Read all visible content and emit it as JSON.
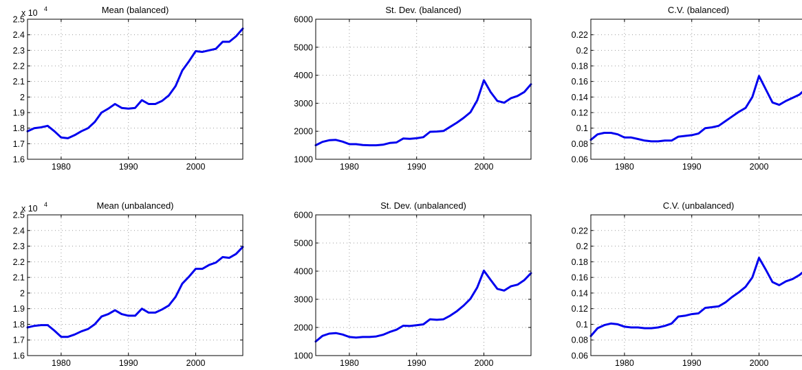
{
  "chart_data": [
    {
      "type": "line",
      "title": "Mean (balanced)",
      "multiplier_base": "x 10",
      "multiplier_exp": "4",
      "xlim": [
        1975,
        2007
      ],
      "ylim": [
        1.6,
        2.5
      ],
      "xticks": [
        1980,
        1990,
        2000
      ],
      "xtick_labels": [
        "1980",
        "1990",
        "2000"
      ],
      "yticks": [
        1.6,
        1.7,
        1.8,
        1.9,
        2.0,
        2.1,
        2.2,
        2.3,
        2.4,
        2.5
      ],
      "ytick_labels": [
        "1.6",
        "1.7",
        "1.8",
        "1.9",
        "2",
        "2.1",
        "2.2",
        "2.3",
        "2.4",
        "2.5"
      ],
      "grid": true,
      "color": "#0000ee",
      "x": [
        1975,
        1976,
        1977,
        1978,
        1979,
        1980,
        1981,
        1982,
        1983,
        1984,
        1985,
        1986,
        1987,
        1988,
        1989,
        1990,
        1991,
        1992,
        1993,
        1994,
        1995,
        1996,
        1997,
        1998,
        1999,
        2000,
        2001,
        2002,
        2003,
        2004,
        2005,
        2006,
        2007
      ],
      "y": [
        1.78,
        1.8,
        1.805,
        1.815,
        1.78,
        1.74,
        1.735,
        1.755,
        1.78,
        1.8,
        1.84,
        1.9,
        1.925,
        1.955,
        1.93,
        1.925,
        1.93,
        1.98,
        1.955,
        1.955,
        1.975,
        2.01,
        2.07,
        2.17,
        2.23,
        2.295,
        2.29,
        2.3,
        2.31,
        2.355,
        2.355,
        2.39,
        2.44
      ]
    },
    {
      "type": "line",
      "title": "St. Dev. (balanced)",
      "xlim": [
        1975,
        2007
      ],
      "ylim": [
        1000,
        6000
      ],
      "xticks": [
        1980,
        1990,
        2000
      ],
      "xtick_labels": [
        "1980",
        "1990",
        "2000"
      ],
      "yticks": [
        1000,
        2000,
        3000,
        4000,
        5000,
        6000
      ],
      "ytick_labels": [
        "1000",
        "2000",
        "3000",
        "4000",
        "5000",
        "6000"
      ],
      "grid": true,
      "color": "#0000ee",
      "x": [
        1975,
        1976,
        1977,
        1978,
        1979,
        1980,
        1981,
        1982,
        1983,
        1984,
        1985,
        1986,
        1987,
        1988,
        1989,
        1990,
        1991,
        1992,
        1993,
        1994,
        1995,
        1996,
        1997,
        1998,
        1999,
        2000,
        2001,
        2002,
        2003,
        2004,
        2005,
        2006,
        2007
      ],
      "y": [
        1500,
        1620,
        1680,
        1690,
        1630,
        1540,
        1540,
        1510,
        1500,
        1500,
        1520,
        1580,
        1600,
        1740,
        1730,
        1750,
        1790,
        1980,
        1990,
        2010,
        2160,
        2310,
        2480,
        2680,
        3100,
        3820,
        3400,
        3080,
        3020,
        3180,
        3260,
        3400,
        3680
      ]
    },
    {
      "type": "line",
      "title": "C.V. (balanced)",
      "xlim": [
        1975,
        2007
      ],
      "ylim": [
        0.06,
        0.24
      ],
      "xticks": [
        1980,
        1990,
        2000
      ],
      "xtick_labels": [
        "1980",
        "1990",
        "2000"
      ],
      "yticks": [
        0.06,
        0.08,
        0.1,
        0.12,
        0.14,
        0.16,
        0.18,
        0.2,
        0.22
      ],
      "ytick_labels": [
        "0.06",
        "0.08",
        "0.1",
        "0.12",
        "0.14",
        "0.16",
        "0.18",
        "0.2",
        "0.22"
      ],
      "grid": true,
      "color": "#0000ee",
      "x": [
        1975,
        1976,
        1977,
        1978,
        1979,
        1980,
        1981,
        1982,
        1983,
        1984,
        1985,
        1986,
        1987,
        1988,
        1989,
        1990,
        1991,
        1992,
        1993,
        1994,
        1995,
        1996,
        1997,
        1998,
        1999,
        2000,
        2001,
        2002,
        2003,
        2004,
        2005,
        2006,
        2007
      ],
      "y": [
        0.085,
        0.092,
        0.094,
        0.094,
        0.092,
        0.088,
        0.088,
        0.086,
        0.084,
        0.083,
        0.083,
        0.084,
        0.084,
        0.089,
        0.09,
        0.091,
        0.093,
        0.1,
        0.101,
        0.103,
        0.109,
        0.115,
        0.121,
        0.126,
        0.14,
        0.167,
        0.15,
        0.133,
        0.13,
        0.135,
        0.139,
        0.143,
        0.151
      ]
    },
    {
      "type": "line",
      "title": "Mean (unbalanced)",
      "multiplier_base": "x 10",
      "multiplier_exp": "4",
      "xlim": [
        1975,
        2007
      ],
      "ylim": [
        1.6,
        2.5
      ],
      "xticks": [
        1980,
        1990,
        2000
      ],
      "xtick_labels": [
        "1980",
        "1990",
        "2000"
      ],
      "yticks": [
        1.6,
        1.7,
        1.8,
        1.9,
        2.0,
        2.1,
        2.2,
        2.3,
        2.4,
        2.5
      ],
      "ytick_labels": [
        "1.6",
        "1.7",
        "1.8",
        "1.9",
        "2",
        "2.1",
        "2.2",
        "2.3",
        "2.4",
        "2.5"
      ],
      "grid": true,
      "color": "#0000ee",
      "x": [
        1975,
        1976,
        1977,
        1978,
        1979,
        1980,
        1981,
        1982,
        1983,
        1984,
        1985,
        1986,
        1987,
        1988,
        1989,
        1990,
        1991,
        1992,
        1993,
        1994,
        1995,
        1996,
        1997,
        1998,
        1999,
        2000,
        2001,
        2002,
        2003,
        2004,
        2005,
        2006,
        2007
      ],
      "y": [
        1.78,
        1.79,
        1.795,
        1.795,
        1.76,
        1.72,
        1.72,
        1.735,
        1.755,
        1.77,
        1.8,
        1.85,
        1.865,
        1.89,
        1.865,
        1.855,
        1.855,
        1.9,
        1.875,
        1.875,
        1.895,
        1.92,
        1.975,
        2.06,
        2.105,
        2.155,
        2.155,
        2.18,
        2.195,
        2.23,
        2.225,
        2.25,
        2.295
      ]
    },
    {
      "type": "line",
      "title": "St. Dev. (unbalanced)",
      "xlim": [
        1975,
        2007
      ],
      "ylim": [
        1000,
        6000
      ],
      "xticks": [
        1980,
        1990,
        2000
      ],
      "xtick_labels": [
        "1980",
        "1990",
        "2000"
      ],
      "yticks": [
        1000,
        2000,
        3000,
        4000,
        5000,
        6000
      ],
      "ytick_labels": [
        "1000",
        "2000",
        "3000",
        "4000",
        "5000",
        "6000"
      ],
      "grid": true,
      "color": "#0000ee",
      "x": [
        1975,
        1976,
        1977,
        1978,
        1979,
        1980,
        1981,
        1982,
        1983,
        1984,
        1985,
        1986,
        1987,
        1988,
        1989,
        1990,
        1991,
        1992,
        1993,
        1994,
        1995,
        1996,
        1997,
        1998,
        1999,
        2000,
        2001,
        2002,
        2003,
        2004,
        2005,
        2006,
        2007
      ],
      "y": [
        1500,
        1700,
        1780,
        1800,
        1750,
        1660,
        1640,
        1660,
        1660,
        1680,
        1740,
        1840,
        1920,
        2060,
        2050,
        2080,
        2110,
        2290,
        2270,
        2290,
        2420,
        2580,
        2780,
        3020,
        3420,
        4020,
        3690,
        3370,
        3310,
        3460,
        3520,
        3680,
        3930
      ]
    },
    {
      "type": "line",
      "title": "C.V. (unbalanced)",
      "xlim": [
        1975,
        2007
      ],
      "ylim": [
        0.06,
        0.24
      ],
      "xticks": [
        1980,
        1990,
        2000
      ],
      "xtick_labels": [
        "1980",
        "1990",
        "2000"
      ],
      "yticks": [
        0.06,
        0.08,
        0.1,
        0.12,
        0.14,
        0.16,
        0.18,
        0.2,
        0.22
      ],
      "ytick_labels": [
        "0.06",
        "0.08",
        "0.1",
        "0.12",
        "0.14",
        "0.16",
        "0.18",
        "0.2",
        "0.22"
      ],
      "grid": true,
      "color": "#0000ee",
      "x": [
        1975,
        1976,
        1977,
        1978,
        1979,
        1980,
        1981,
        1982,
        1983,
        1984,
        1985,
        1986,
        1987,
        1988,
        1989,
        1990,
        1991,
        1992,
        1993,
        1994,
        1995,
        1996,
        1997,
        1998,
        1999,
        2000,
        2001,
        2002,
        2003,
        2004,
        2005,
        2006,
        2007
      ],
      "y": [
        0.085,
        0.095,
        0.099,
        0.101,
        0.1,
        0.097,
        0.096,
        0.096,
        0.095,
        0.095,
        0.096,
        0.098,
        0.101,
        0.11,
        0.111,
        0.113,
        0.114,
        0.121,
        0.122,
        0.123,
        0.128,
        0.135,
        0.141,
        0.148,
        0.16,
        0.185,
        0.17,
        0.154,
        0.15,
        0.155,
        0.158,
        0.163,
        0.17
      ]
    }
  ]
}
